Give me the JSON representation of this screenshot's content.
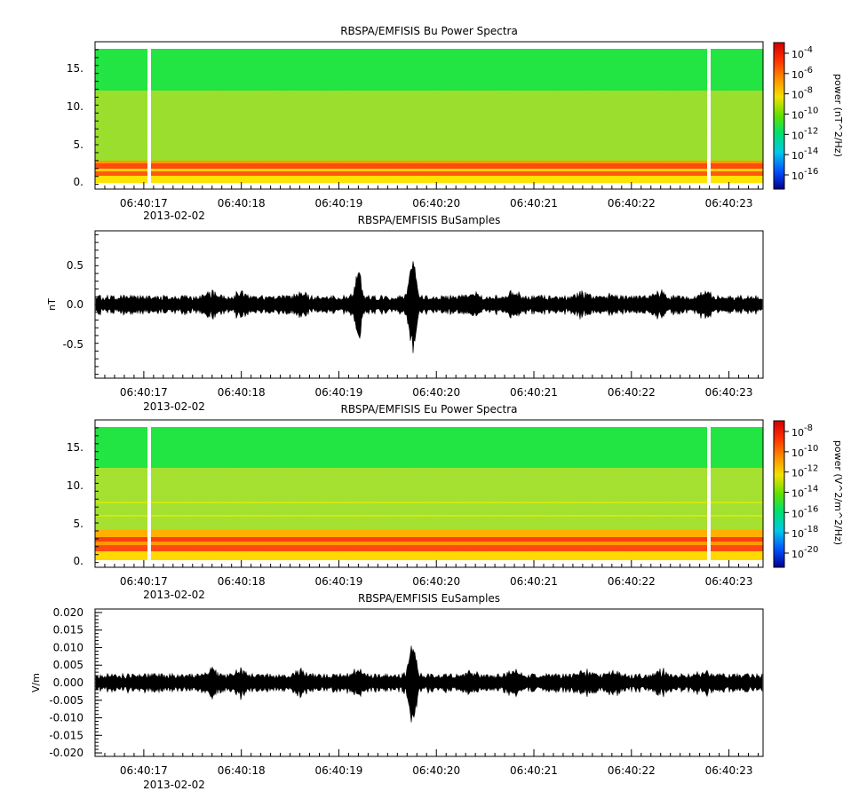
{
  "chart_data": [
    {
      "type": "heatmap",
      "title": "RBSPA/EMFISIS  Bu Power Spectra",
      "ylabel": "",
      "ylim": [
        -0.6,
        18
      ],
      "yticks": [
        "15.",
        "10.",
        "5.",
        "0."
      ],
      "y_tick_values": [
        15,
        10,
        5,
        0
      ],
      "x_tick_labels": [
        "06:40:17",
        "06:40:18",
        "06:40:19",
        "06:40:20",
        "06:40:21",
        "06:40:22",
        "06:40:23"
      ],
      "x_date_label": "2013-02-02",
      "colorbar": {
        "label": "power (nT^2/Hz)",
        "tick_mantissa": "10",
        "tick_exponents": [
          "-4",
          "-6",
          "-8",
          "-10",
          "-12",
          "-14",
          "-16"
        ]
      },
      "bands": [
        {
          "from": 12,
          "to": 17.5,
          "level": "green"
        },
        {
          "from": 2.6,
          "to": 12,
          "level": "yellow-green"
        },
        {
          "from": 0.8,
          "to": 2.6,
          "level": "red-orange"
        },
        {
          "from": 0,
          "to": 0.8,
          "level": "yellow"
        }
      ],
      "data_gaps_time": [
        "06:40:16.86",
        "06:40:22.86"
      ]
    },
    {
      "type": "line",
      "title": "RBSPA/EMFISIS  BuSamples",
      "ylabel": "nT",
      "ylim": [
        -0.95,
        0.95
      ],
      "yticks": [
        "0.5",
        "0.0",
        "-0.5"
      ],
      "y_tick_values": [
        0.5,
        0.0,
        -0.5
      ],
      "x_tick_labels": [
        "06:40:17",
        "06:40:18",
        "06:40:19",
        "06:40:20",
        "06:40:21",
        "06:40:22",
        "06:40:23"
      ],
      "x_date_label": "2013-02-02",
      "envelope_peaks": [
        {
          "time": "06:40:19.20",
          "value": 0.47
        },
        {
          "time": "06:40:19.75",
          "value": 0.5
        },
        {
          "time": "06:40:19.76",
          "value": -0.59
        }
      ]
    },
    {
      "type": "heatmap",
      "title": "RBSPA/EMFISIS  Eu Power Spectra",
      "ylabel": "",
      "ylim": [
        -0.6,
        18
      ],
      "yticks": [
        "15.",
        "10.",
        "5.",
        "0."
      ],
      "y_tick_values": [
        15,
        10,
        5,
        0
      ],
      "x_tick_labels": [
        "06:40:17",
        "06:40:18",
        "06:40:19",
        "06:40:20",
        "06:40:21",
        "06:40:22",
        "06:40:23"
      ],
      "x_date_label": "2013-02-02",
      "colorbar": {
        "label": "power (V^2/m^2/Hz)",
        "tick_mantissa": "10",
        "tick_exponents": [
          "-8",
          "-10",
          "-12",
          "-14",
          "-16",
          "-18",
          "-20"
        ]
      },
      "bands": [
        {
          "from": 12,
          "to": 17.5,
          "level": "green"
        },
        {
          "from": 2.8,
          "to": 12,
          "level": "yellow-green"
        },
        {
          "from": 0.8,
          "to": 2.8,
          "level": "red-orange"
        },
        {
          "from": 0,
          "to": 0.8,
          "level": "yellow"
        }
      ],
      "data_gaps_time": [
        "06:40:16.86",
        "06:40:22.86"
      ]
    },
    {
      "type": "line",
      "title": "RBSPA/EMFISIS  EuSamples",
      "ylabel": "V/m",
      "ylim": [
        -0.021,
        0.021
      ],
      "yticks": [
        "0.020",
        "0.015",
        "0.010",
        "0.005",
        "0.000",
        "-0.005",
        "-0.010",
        "-0.015",
        "-0.020"
      ],
      "y_tick_values": [
        0.02,
        0.015,
        0.01,
        0.005,
        0.0,
        -0.005,
        -0.01,
        -0.015,
        -0.02
      ],
      "x_tick_labels": [
        "06:40:17",
        "06:40:18",
        "06:40:19",
        "06:40:20",
        "06:40:21",
        "06:40:22",
        "06:40:23"
      ],
      "x_date_label": "2013-02-02",
      "envelope_peaks": [
        {
          "time": "06:40:19.75",
          "value": 0.0135
        },
        {
          "time": "06:40:19.76",
          "value": -0.0125
        }
      ]
    }
  ]
}
